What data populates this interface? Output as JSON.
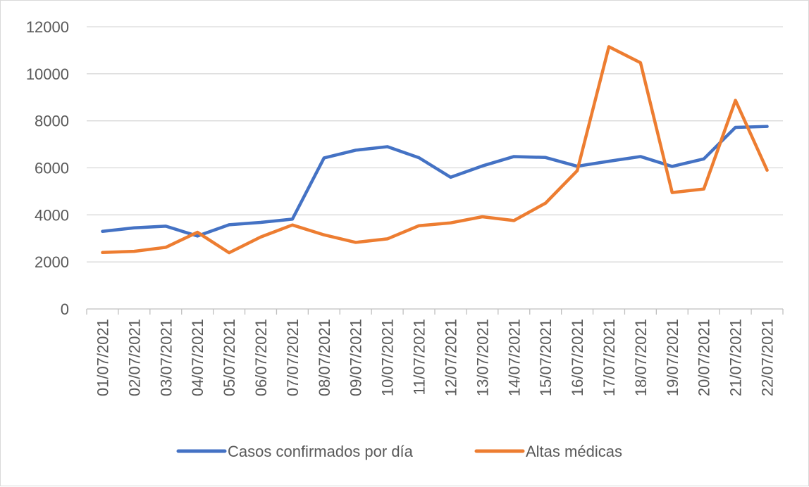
{
  "chart_data": {
    "type": "line",
    "categories": [
      "01/07/2021",
      "02/07/2021",
      "03/07/2021",
      "04/07/2021",
      "05/07/2021",
      "06/07/2021",
      "07/07/2021",
      "08/07/2021",
      "09/07/2021",
      "10/07/2021",
      "11/07/2021",
      "12/07/2021",
      "13/07/2021",
      "14/07/2021",
      "15/07/2021",
      "16/07/2021",
      "17/07/2021",
      "18/07/2021",
      "19/07/2021",
      "20/07/2021",
      "21/07/2021",
      "22/07/2021"
    ],
    "series": [
      {
        "name": "Casos confirmados por día",
        "color": "#4472C4",
        "values": [
          3300,
          3450,
          3520,
          3100,
          3580,
          3680,
          3820,
          6420,
          6750,
          6900,
          6430,
          5600,
          6080,
          6480,
          6440,
          6070,
          6280,
          6480,
          6060,
          6380,
          7720,
          7760
        ]
      },
      {
        "name": "Altas médicas",
        "color": "#ED7D31",
        "values": [
          2400,
          2450,
          2620,
          3260,
          2390,
          3060,
          3570,
          3150,
          2830,
          2980,
          3540,
          3660,
          3920,
          3760,
          4500,
          5880,
          11150,
          10470,
          4950,
          5100,
          8870,
          5900
        ]
      }
    ],
    "ylim": [
      0,
      12000
    ],
    "yticks": [
      0,
      2000,
      4000,
      6000,
      8000,
      10000,
      12000
    ],
    "title": "",
    "xlabel": "",
    "ylabel": "",
    "grid": true,
    "legend": "bottom"
  }
}
